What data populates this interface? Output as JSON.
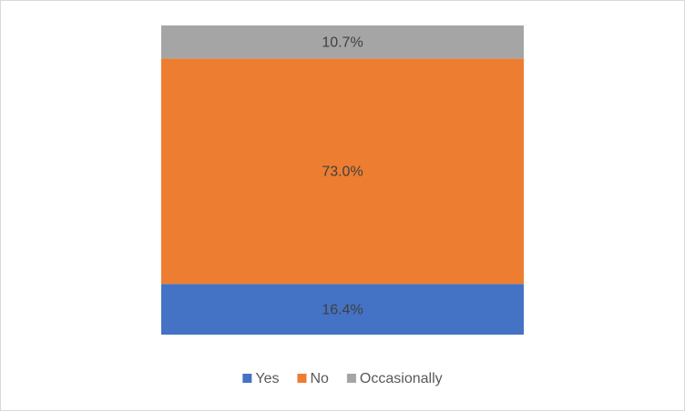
{
  "chart_data": {
    "type": "bar",
    "stacked": true,
    "categories": [
      null
    ],
    "series": [
      {
        "name": "Yes",
        "color": "#4472c4",
        "values": [
          16.4
        ],
        "value_labels": [
          "16.4%"
        ]
      },
      {
        "name": "No",
        "color": "#ed7d31",
        "values": [
          73.0
        ],
        "value_labels": [
          "73.0%"
        ]
      },
      {
        "name": "Occasionally",
        "color": "#a5a5a5",
        "values": [
          10.7
        ],
        "value_labels": [
          "10.7%"
        ]
      }
    ],
    "legend": "bottom"
  }
}
